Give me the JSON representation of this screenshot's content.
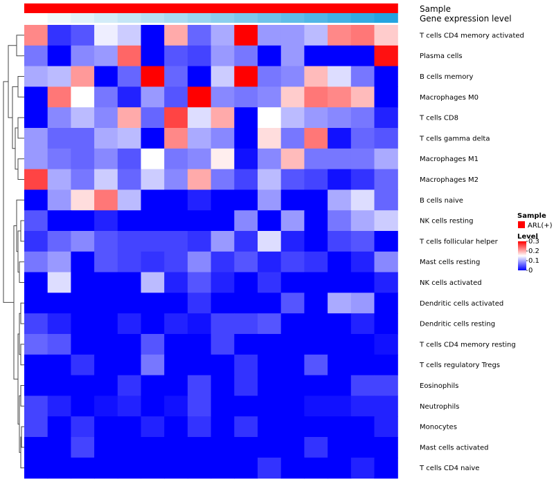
{
  "chart_data": {
    "type": "heatmap",
    "title": "",
    "annotation_tracks": [
      {
        "name": "Sample",
        "colors": [
          "#ff0000"
        ]
      },
      {
        "name": "Gene expression level",
        "colors": [
          "#ffffff",
          "#f0f8fc",
          "#e2f2fa",
          "#d3ecf8",
          "#c5e6f6",
          "#b6e0f4",
          "#a8daf2",
          "#99d4f0",
          "#8bceee",
          "#7cc8ec",
          "#6ec2ea",
          "#5fbce8",
          "#51b6e6",
          "#42b0e4",
          "#34aae2",
          "#25a4e0"
        ]
      }
    ],
    "rows": [
      "T cells CD4 memory activated",
      "Plasma cells",
      "B cells memory",
      "Macrophages M0",
      "T cells CD8",
      "T cells gamma delta",
      "Macrophages M1",
      "Macrophages M2",
      "B cells naive",
      "NK cells resting",
      "T cells follicular helper",
      "Mast cells resting",
      "NK cells activated",
      "Dendritic cells activated",
      "Dendritic cells resting",
      "T cells CD4 memory resting",
      "T cells regulatory  Tregs",
      "Eosinophils",
      "Neutrophils",
      "Monocytes",
      "Mast cells activated",
      "T cells CD4 naive"
    ],
    "n_columns": 16,
    "values": [
      [
        0.22,
        0.03,
        0.05,
        0.14,
        0.12,
        0.0,
        0.2,
        0.06,
        0.1,
        0.3,
        0.09,
        0.09,
        0.11,
        0.22,
        0.23,
        0.18
      ],
      [
        0.07,
        0.0,
        0.08,
        0.09,
        0.24,
        0.0,
        0.05,
        0.04,
        0.09,
        0.07,
        0.0,
        0.09,
        0.0,
        0.0,
        0.0,
        0.29
      ],
      [
        0.1,
        0.11,
        0.21,
        0.0,
        0.06,
        0.3,
        0.06,
        0.0,
        0.12,
        0.3,
        0.07,
        0.08,
        0.19,
        0.13,
        0.07,
        0.0
      ],
      [
        0.0,
        0.23,
        0.15,
        0.07,
        0.02,
        0.09,
        0.05,
        0.3,
        0.08,
        0.07,
        0.08,
        0.18,
        0.23,
        0.22,
        0.19,
        0.0
      ],
      [
        0.0,
        0.08,
        0.11,
        0.08,
        0.2,
        0.06,
        0.26,
        0.13,
        0.2,
        0.0,
        0.15,
        0.11,
        0.09,
        0.08,
        0.07,
        0.02
      ],
      [
        0.09,
        0.06,
        0.06,
        0.1,
        0.11,
        0.0,
        0.22,
        0.1,
        0.08,
        0.0,
        0.17,
        0.07,
        0.23,
        0.01,
        0.06,
        0.05
      ],
      [
        0.09,
        0.07,
        0.06,
        0.08,
        0.05,
        0.15,
        0.07,
        0.08,
        0.16,
        0.01,
        0.08,
        0.19,
        0.07,
        0.07,
        0.07,
        0.1
      ],
      [
        0.26,
        0.1,
        0.07,
        0.12,
        0.06,
        0.12,
        0.08,
        0.2,
        0.07,
        0.04,
        0.11,
        0.05,
        0.04,
        0.01,
        0.03,
        0.06
      ],
      [
        0.0,
        0.09,
        0.17,
        0.23,
        0.11,
        0.0,
        0.0,
        0.02,
        0.0,
        0.0,
        0.09,
        0.0,
        0.0,
        0.1,
        0.13,
        0.06
      ],
      [
        0.05,
        0.0,
        0.0,
        0.02,
        0.0,
        0.0,
        0.0,
        0.0,
        0.0,
        0.08,
        0.0,
        0.09,
        0.0,
        0.07,
        0.1,
        0.12
      ],
      [
        0.03,
        0.06,
        0.08,
        0.05,
        0.04,
        0.04,
        0.04,
        0.03,
        0.09,
        0.03,
        0.13,
        0.02,
        0.0,
        0.04,
        0.05,
        0.0
      ],
      [
        0.07,
        0.09,
        0.0,
        0.05,
        0.04,
        0.03,
        0.04,
        0.08,
        0.03,
        0.05,
        0.02,
        0.04,
        0.03,
        0.0,
        0.02,
        0.08
      ],
      [
        0.0,
        0.13,
        0.0,
        0.0,
        0.0,
        0.11,
        0.02,
        0.05,
        0.02,
        0.0,
        0.03,
        0.0,
        0.0,
        0.0,
        0.0,
        0.02
      ],
      [
        0.0,
        0.0,
        0.0,
        0.0,
        0.0,
        0.0,
        0.0,
        0.03,
        0.0,
        0.0,
        0.0,
        0.05,
        0.0,
        0.1,
        0.09,
        0.0
      ],
      [
        0.04,
        0.02,
        0.0,
        0.0,
        0.02,
        0.0,
        0.02,
        0.01,
        0.04,
        0.04,
        0.05,
        0.0,
        0.0,
        0.0,
        0.02,
        0.0
      ],
      [
        0.06,
        0.05,
        0.0,
        0.0,
        0.0,
        0.05,
        0.0,
        0.0,
        0.04,
        0.0,
        0.0,
        0.0,
        0.0,
        0.0,
        0.0,
        0.01
      ],
      [
        0.0,
        0.0,
        0.03,
        0.0,
        0.0,
        0.07,
        0.0,
        0.0,
        0.0,
        0.03,
        0.0,
        0.0,
        0.05,
        0.0,
        0.0,
        0.0
      ],
      [
        0.0,
        0.0,
        0.0,
        0.0,
        0.03,
        0.0,
        0.0,
        0.04,
        0.0,
        0.03,
        0.0,
        0.0,
        0.0,
        0.0,
        0.04,
        0.04
      ],
      [
        0.04,
        0.02,
        0.0,
        0.01,
        0.02,
        0.0,
        0.01,
        0.04,
        0.0,
        0.0,
        0.0,
        0.0,
        0.01,
        0.01,
        0.02,
        0.02
      ],
      [
        0.04,
        0.0,
        0.03,
        0.0,
        0.0,
        0.02,
        0.0,
        0.03,
        0.0,
        0.03,
        0.0,
        0.0,
        0.0,
        0.0,
        0.0,
        0.02
      ],
      [
        0.0,
        0.0,
        0.04,
        0.0,
        0.0,
        0.0,
        0.0,
        0.0,
        0.0,
        0.0,
        0.0,
        0.0,
        0.03,
        0.0,
        0.0,
        0.0
      ],
      [
        0.0,
        0.0,
        0.0,
        0.0,
        0.0,
        0.0,
        0.0,
        0.0,
        0.0,
        0.0,
        0.03,
        0.0,
        0.0,
        0.0,
        0.02,
        0.0
      ]
    ],
    "color_scale": {
      "min": 0,
      "mid": 0.15,
      "max": 0.3,
      "low": "#0000ff",
      "midColor": "#ffffff",
      "high": "#ff0000"
    },
    "legend": {
      "sample_title": "Sample",
      "sample_item": "ARL(+)",
      "sample_color": "#ff0000",
      "level_title": "Level",
      "ticks": [
        "0.3",
        "0.2",
        "0.1",
        "0"
      ],
      "tick_values": [
        0.3,
        0.2,
        0.1,
        0
      ]
    },
    "dendrogram": "row clustering, left side"
  }
}
